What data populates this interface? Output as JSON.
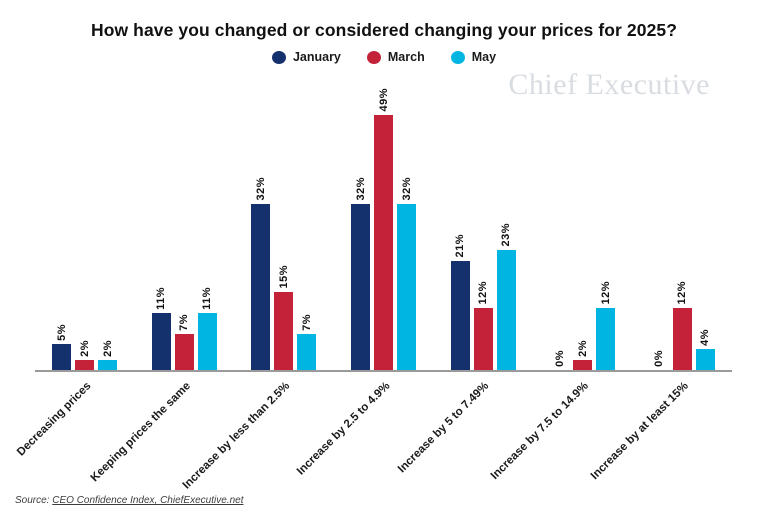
{
  "title": "How have you changed or considered changing your prices for 2025?",
  "watermark": "Chief Executive",
  "legend": [
    {
      "label": "January",
      "color": "#14316d"
    },
    {
      "label": "March",
      "color": "#c32239"
    },
    {
      "label": "May",
      "color": "#00b5e2"
    }
  ],
  "source": {
    "prefix": "Source: ",
    "link": "CEO Confidence Index, ChiefExecutive.net"
  },
  "chart_data": {
    "type": "bar",
    "title": "How have you changed or considered changing your prices for 2025?",
    "categories": [
      "Decreasing prices",
      "Keeping prices the same",
      "Increase by less than 2.5%",
      "Increase by 2.5 to 4.9%",
      "Increase by 5 to 7.49%",
      "Increase by 7.5 to 14.9%",
      "Increase by at least 15%"
    ],
    "series": [
      {
        "name": "January",
        "color": "#14316d",
        "values": [
          5,
          11,
          32,
          32,
          21,
          0,
          0
        ]
      },
      {
        "name": "March",
        "color": "#c32239",
        "values": [
          2,
          7,
          15,
          49,
          12,
          2,
          12
        ]
      },
      {
        "name": "May",
        "color": "#00b5e2",
        "values": [
          2,
          11,
          7,
          32,
          23,
          12,
          4
        ]
      }
    ],
    "value_suffix": "%",
    "ylim": [
      0,
      49
    ],
    "grid": false,
    "legend_position": "top",
    "xlabel": "",
    "ylabel": ""
  }
}
